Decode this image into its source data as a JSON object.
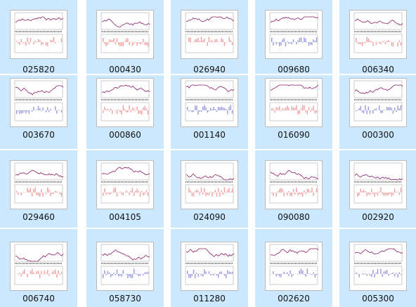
{
  "files": [
    "025820",
    "000430",
    "026940",
    "009680",
    "006340",
    "003670",
    "000860",
    "001140",
    "016090",
    "000300",
    "029460",
    "004105",
    "024090",
    "090080",
    "002920",
    "006740",
    "058730",
    "011280",
    "002620",
    "005300"
  ]
}
